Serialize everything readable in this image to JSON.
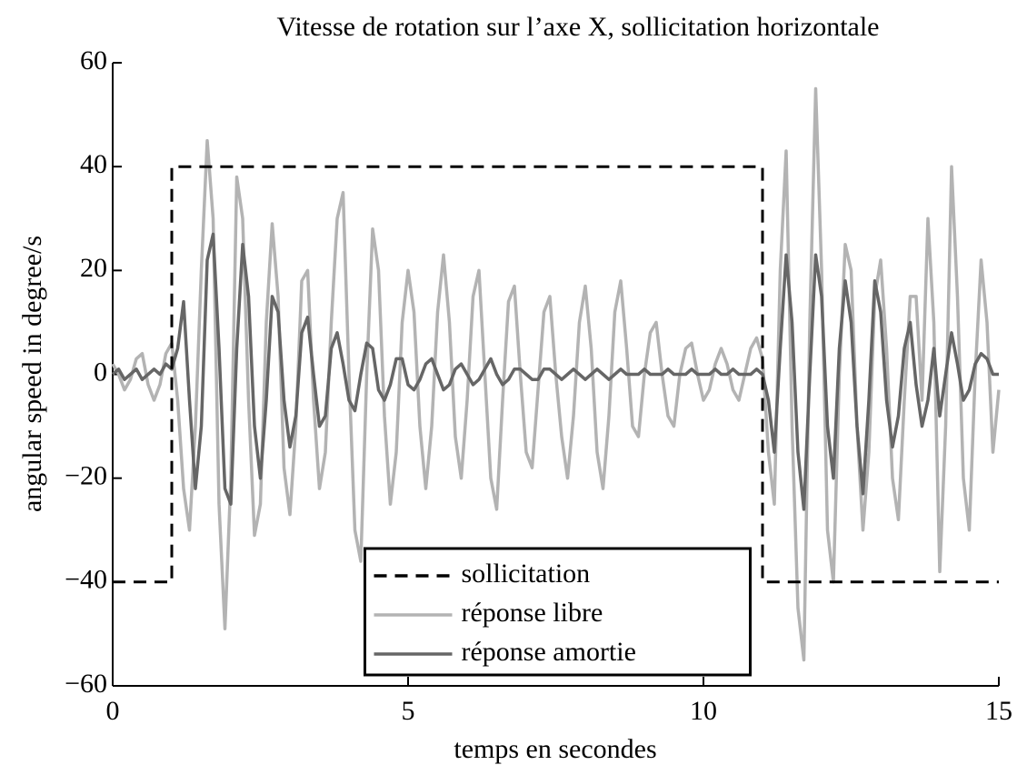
{
  "chart_data": {
    "type": "line",
    "title": "Vitesse de rotation sur l’axe X, sollicitation horizontale",
    "xlabel": "temps en secondes",
    "ylabel": "angular speed in degree/s",
    "xlim": [
      0,
      15
    ],
    "ylim": [
      -60,
      60
    ],
    "xticks": [
      0,
      5,
      10,
      15
    ],
    "yticks": [
      {
        "value": -60,
        "label": "−60"
      },
      {
        "value": -40,
        "label": "−40"
      },
      {
        "value": -20,
        "label": "−20"
      },
      0,
      20,
      40,
      60
    ],
    "grid": false,
    "legend": "lower center",
    "x": [
      0,
      0.1,
      0.2,
      0.3,
      0.4,
      0.5,
      0.6,
      0.7,
      0.8,
      0.9,
      1,
      1.1,
      1.2,
      1.3,
      1.4,
      1.5,
      1.6,
      1.7,
      1.8,
      1.9,
      2,
      2.1,
      2.2,
      2.3,
      2.4,
      2.5,
      2.6,
      2.7,
      2.8,
      2.9,
      3,
      3.1,
      3.2,
      3.3,
      3.4,
      3.5,
      3.6,
      3.7,
      3.8,
      3.9,
      4,
      4.1,
      4.2,
      4.3,
      4.4,
      4.5,
      4.6,
      4.7,
      4.8,
      4.9,
      5,
      5.1,
      5.2,
      5.3,
      5.4,
      5.5,
      5.6,
      5.7,
      5.8,
      5.9,
      6,
      6.1,
      6.2,
      6.3,
      6.4,
      6.5,
      6.6,
      6.7,
      6.8,
      6.9,
      7,
      7.1,
      7.2,
      7.3,
      7.4,
      7.5,
      7.6,
      7.7,
      7.8,
      7.9,
      8,
      8.1,
      8.2,
      8.3,
      8.4,
      8.5,
      8.6,
      8.7,
      8.8,
      8.9,
      9,
      9.1,
      9.2,
      9.3,
      9.4,
      9.5,
      9.6,
      9.7,
      9.8,
      9.9,
      10,
      10.1,
      10.2,
      10.3,
      10.4,
      10.5,
      10.6,
      10.7,
      10.8,
      10.9,
      11,
      11.1,
      11.2,
      11.3,
      11.4,
      11.5,
      11.6,
      11.7,
      11.8,
      11.9,
      12,
      12.1,
      12.2,
      12.3,
      12.4,
      12.5,
      12.6,
      12.7,
      12.8,
      12.9,
      13,
      13.1,
      13.2,
      13.3,
      13.4,
      13.5,
      13.6,
      13.7,
      13.8,
      13.9,
      14,
      14.1,
      14.2,
      14.3,
      14.4,
      14.5,
      14.6,
      14.7,
      14.8,
      14.9,
      15
    ],
    "series": [
      {
        "name": "sollicitation",
        "color": "#000000",
        "dash": true,
        "x": [
          0,
          1,
          1,
          11,
          11,
          15
        ],
        "values": [
          -40,
          -40,
          40,
          40,
          -40,
          -40
        ]
      },
      {
        "name": "réponse libre",
        "color": "#b3b3b3",
        "values": [
          2,
          0,
          -3,
          -1,
          3,
          4,
          -2,
          -5,
          -2,
          4,
          6,
          -5,
          -22,
          -30,
          -10,
          20,
          45,
          30,
          -25,
          -49,
          -20,
          38,
          30,
          -5,
          -31,
          -25,
          10,
          29,
          15,
          -18,
          -27,
          -10,
          18,
          20,
          -5,
          -22,
          -15,
          10,
          30,
          35,
          0,
          -30,
          -36,
          0,
          28,
          20,
          -8,
          -25,
          -15,
          10,
          20,
          12,
          -10,
          -22,
          -10,
          12,
          23,
          10,
          -12,
          -20,
          -5,
          15,
          20,
          0,
          -20,
          -26,
          -5,
          14,
          17,
          0,
          -15,
          -18,
          -3,
          12,
          15,
          0,
          -12,
          -20,
          -8,
          10,
          17,
          5,
          -15,
          -22,
          -8,
          12,
          18,
          5,
          -10,
          -12,
          0,
          8,
          10,
          0,
          -8,
          -10,
          0,
          5,
          6,
          0,
          -5,
          -3,
          2,
          5,
          2,
          -3,
          -5,
          0,
          5,
          7,
          3,
          -15,
          -25,
          20,
          43,
          -10,
          -45,
          -55,
          10,
          55,
          20,
          -30,
          -40,
          0,
          25,
          20,
          -10,
          -30,
          -15,
          15,
          22,
          5,
          -20,
          -28,
          -5,
          15,
          15,
          -5,
          30,
          10,
          -38,
          -10,
          40,
          15,
          -20,
          -30,
          0,
          22,
          10,
          -15,
          -3
        ]
      },
      {
        "name": "réponse amortie",
        "color": "#666666",
        "values": [
          0,
          1,
          -1,
          0,
          1,
          -1,
          0,
          1,
          0,
          2,
          1,
          5,
          14,
          -5,
          -22,
          -10,
          22,
          27,
          5,
          -22,
          -25,
          5,
          25,
          15,
          -10,
          -20,
          -5,
          15,
          12,
          -5,
          -14,
          -8,
          8,
          11,
          0,
          -10,
          -8,
          5,
          8,
          2,
          -5,
          -7,
          0,
          6,
          5,
          -3,
          -5,
          -2,
          3,
          3,
          -2,
          -3,
          -1,
          2,
          3,
          0,
          -3,
          -2,
          1,
          2,
          0,
          -2,
          -1,
          1,
          3,
          0,
          -2,
          -1,
          1,
          1,
          0,
          -1,
          -1,
          1,
          1,
          0,
          -1,
          0,
          1,
          0,
          -1,
          0,
          1,
          0,
          -1,
          0,
          1,
          0,
          0,
          0,
          1,
          0,
          0,
          0,
          1,
          0,
          0,
          0,
          1,
          0,
          0,
          0,
          1,
          0,
          0,
          1,
          0,
          0,
          0,
          1,
          0,
          -5,
          -15,
          5,
          23,
          10,
          -15,
          -26,
          0,
          23,
          15,
          -10,
          -20,
          5,
          18,
          10,
          -10,
          -23,
          -5,
          18,
          12,
          -5,
          -14,
          -8,
          5,
          10,
          -2,
          -10,
          -5,
          5,
          -8,
          0,
          8,
          2,
          -5,
          -3,
          2,
          4,
          3,
          0,
          0
        ]
      }
    ]
  }
}
